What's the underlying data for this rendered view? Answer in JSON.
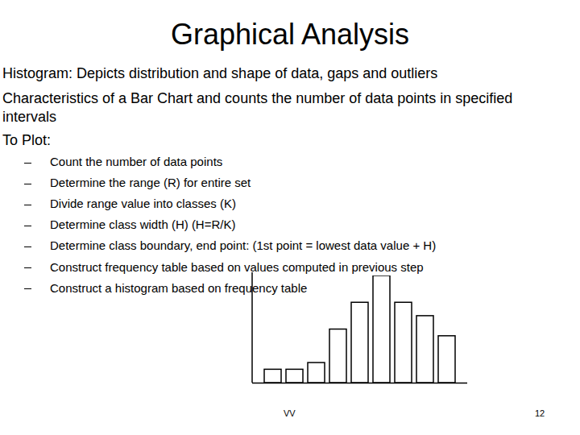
{
  "title": "Graphical Analysis",
  "body": [
    "Histogram: Depicts distribution and shape of data, gaps and outliers",
    "Characteristics of a Bar Chart and counts the number of data points in specified",
    "intervals",
    "To Plot:"
  ],
  "bullets": [
    "Count the number of data points",
    "Determine the range (R) for entire set",
    "Divide range value into classes (K)",
    "Determine class width (H) (H=R/K)",
    "Determine class boundary, end point: (1st point = lowest data value + H)",
    "Construct frequency table based on values computed in previous step",
    "Construct a histogram based on frequency table"
  ],
  "footer": {
    "author": "VV",
    "page": 12
  },
  "chart_data": {
    "type": "bar",
    "categories": [
      null,
      null,
      null,
      null,
      null,
      null,
      null,
      null,
      null
    ],
    "values": [
      1,
      1,
      1.5,
      4,
      6,
      8,
      6,
      5,
      3.5
    ],
    "ylim": [
      0,
      8
    ],
    "tick_labels": false
  }
}
